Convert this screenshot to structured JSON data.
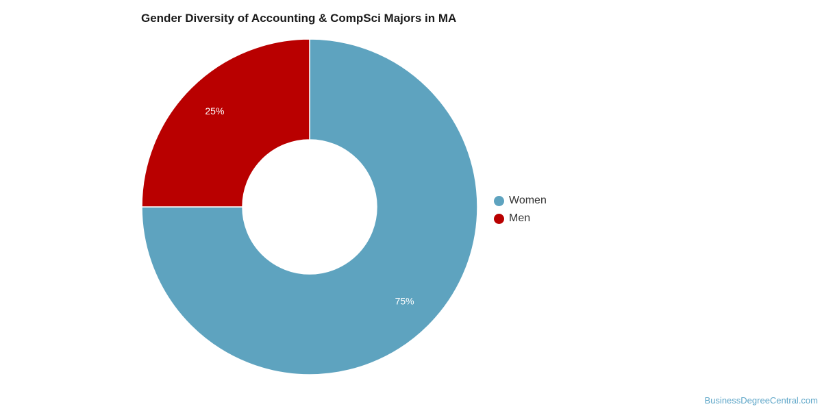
{
  "chart_data": {
    "type": "pie",
    "variant": "donut",
    "title": "Gender Diversity of Accounting & CompSci Majors in MA",
    "categories": [
      "Women",
      "Men"
    ],
    "values": [
      75,
      25
    ],
    "value_labels": [
      "75%",
      "25%"
    ],
    "colors": [
      "#5ea3bf",
      "#b90000"
    ],
    "legend_position": "right"
  },
  "watermark": "BusinessDegreeCentral.com"
}
